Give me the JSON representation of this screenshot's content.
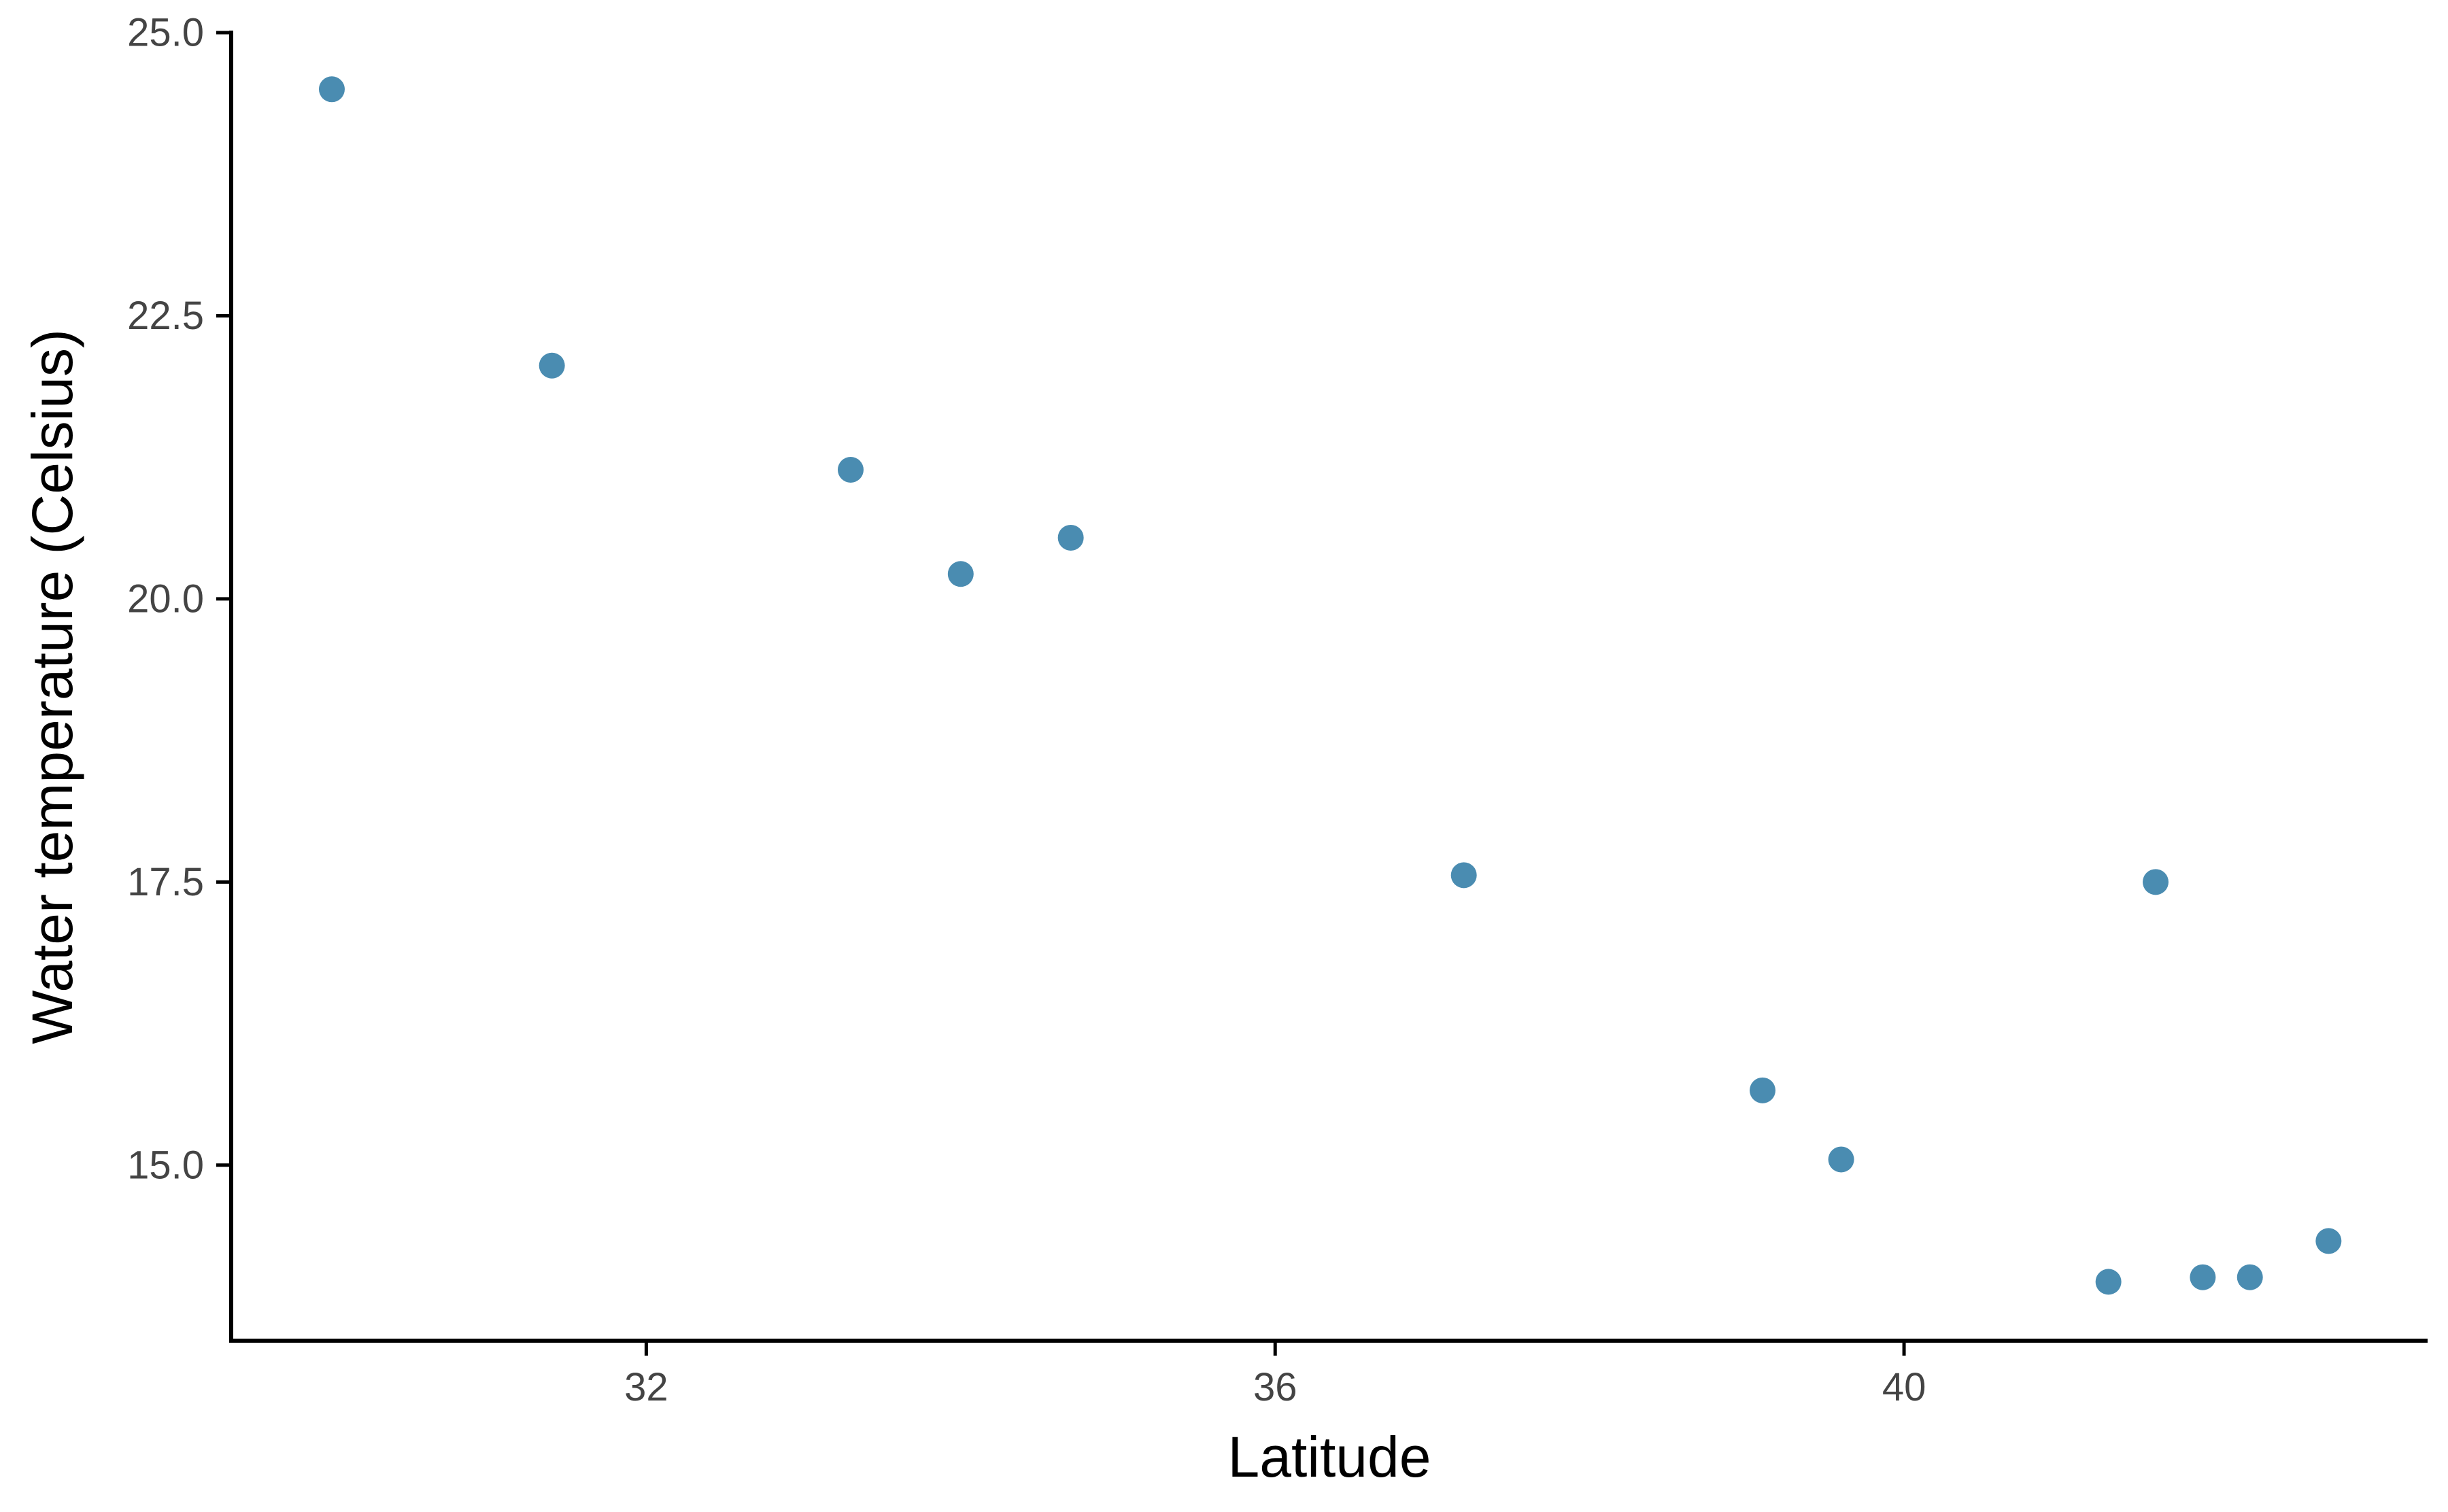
{
  "chart_data": {
    "type": "scatter",
    "title": "",
    "xlabel": "Latitude",
    "ylabel": "Water temperature (Celsius)",
    "xlim": [
      29.36,
      43.33
    ],
    "ylim": [
      13.45,
      25.0
    ],
    "x_ticks": [
      32,
      36,
      40
    ],
    "x_tick_labels": [
      "32",
      "36",
      "40"
    ],
    "y_ticks": [
      15.0,
      17.5,
      20.0,
      22.5,
      25.0
    ],
    "y_tick_labels": [
      "15.0",
      "17.5",
      "20.0",
      "22.5",
      "25.0"
    ],
    "grid": false,
    "legend": "none",
    "point_color": "#4a8cb1",
    "points": [
      {
        "x": 30.0,
        "y": 24.5
      },
      {
        "x": 31.4,
        "y": 22.06
      },
      {
        "x": 33.3,
        "y": 21.14
      },
      {
        "x": 34.0,
        "y": 20.22
      },
      {
        "x": 34.7,
        "y": 20.54
      },
      {
        "x": 37.2,
        "y": 17.56
      },
      {
        "x": 39.1,
        "y": 15.66
      },
      {
        "x": 39.6,
        "y": 15.05
      },
      {
        "x": 41.3,
        "y": 13.97
      },
      {
        "x": 41.6,
        "y": 17.5
      },
      {
        "x": 41.9,
        "y": 14.01
      },
      {
        "x": 42.2,
        "y": 14.01
      },
      {
        "x": 42.7,
        "y": 14.33
      }
    ]
  }
}
